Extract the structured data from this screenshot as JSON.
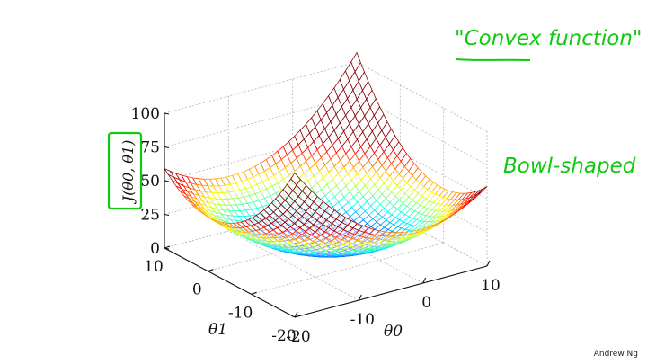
{
  "slide": {
    "author": "Andrew Ng",
    "annotations": {
      "quote": "\"Convex function\"",
      "underline_word": "Convex",
      "side": "Bowl-shaped",
      "color": "#12c912"
    }
  },
  "chart_data": {
    "type": "surface",
    "function": "bowl-shaped convex surface J(θ0, θ1)",
    "zlabel": "J(θ0, θ1)",
    "xlabel": "θ0",
    "ylabel": "θ1",
    "x_range": [
      -20,
      10
    ],
    "y_range": [
      -20,
      10
    ],
    "z_range": [
      0,
      100
    ],
    "z_ticks": [
      "0",
      "25",
      "50",
      "75",
      "100"
    ],
    "x_ticks": [
      "-20",
      "-10",
      "0",
      "10"
    ],
    "y_ticks": [
      "-20",
      "-10",
      "0",
      "10"
    ],
    "grid": true,
    "colormap": "jet"
  }
}
